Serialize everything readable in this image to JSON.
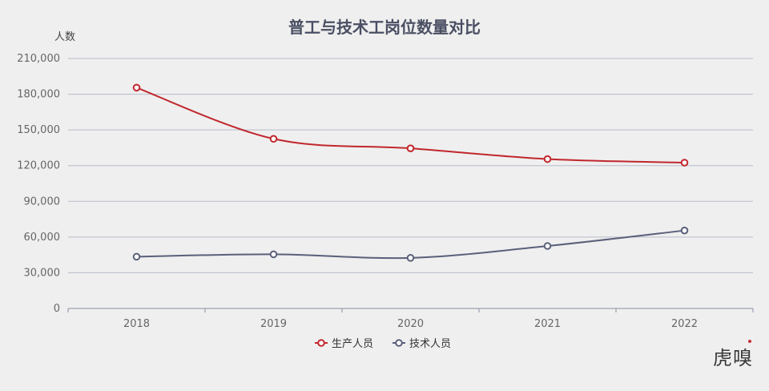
{
  "chart_data": {
    "type": "line",
    "title": "普工与技术工岗位数量对比",
    "ylabel": "人数",
    "xlabel": "",
    "categories": [
      "2018",
      "2019",
      "2020",
      "2021",
      "2022"
    ],
    "ylim": [
      0,
      210000
    ],
    "y_ticks": [
      0,
      30000,
      60000,
      90000,
      120000,
      150000,
      180000,
      210000
    ],
    "y_tick_labels": [
      "0",
      "30,000",
      "60,000",
      "90,000",
      "120,000",
      "150,000",
      "180,000",
      "210,000"
    ],
    "grid": true,
    "legend_position": "bottom-center",
    "series": [
      {
        "name": "生产人员",
        "color": "#c1272d",
        "values": [
          185500,
          142500,
          134500,
          125500,
          122500
        ]
      },
      {
        "name": "技术人员",
        "color": "#5a607a",
        "values": [
          43500,
          45500,
          42500,
          52500,
          65500
        ]
      }
    ]
  },
  "watermark": {
    "text": "虎嗅"
  }
}
